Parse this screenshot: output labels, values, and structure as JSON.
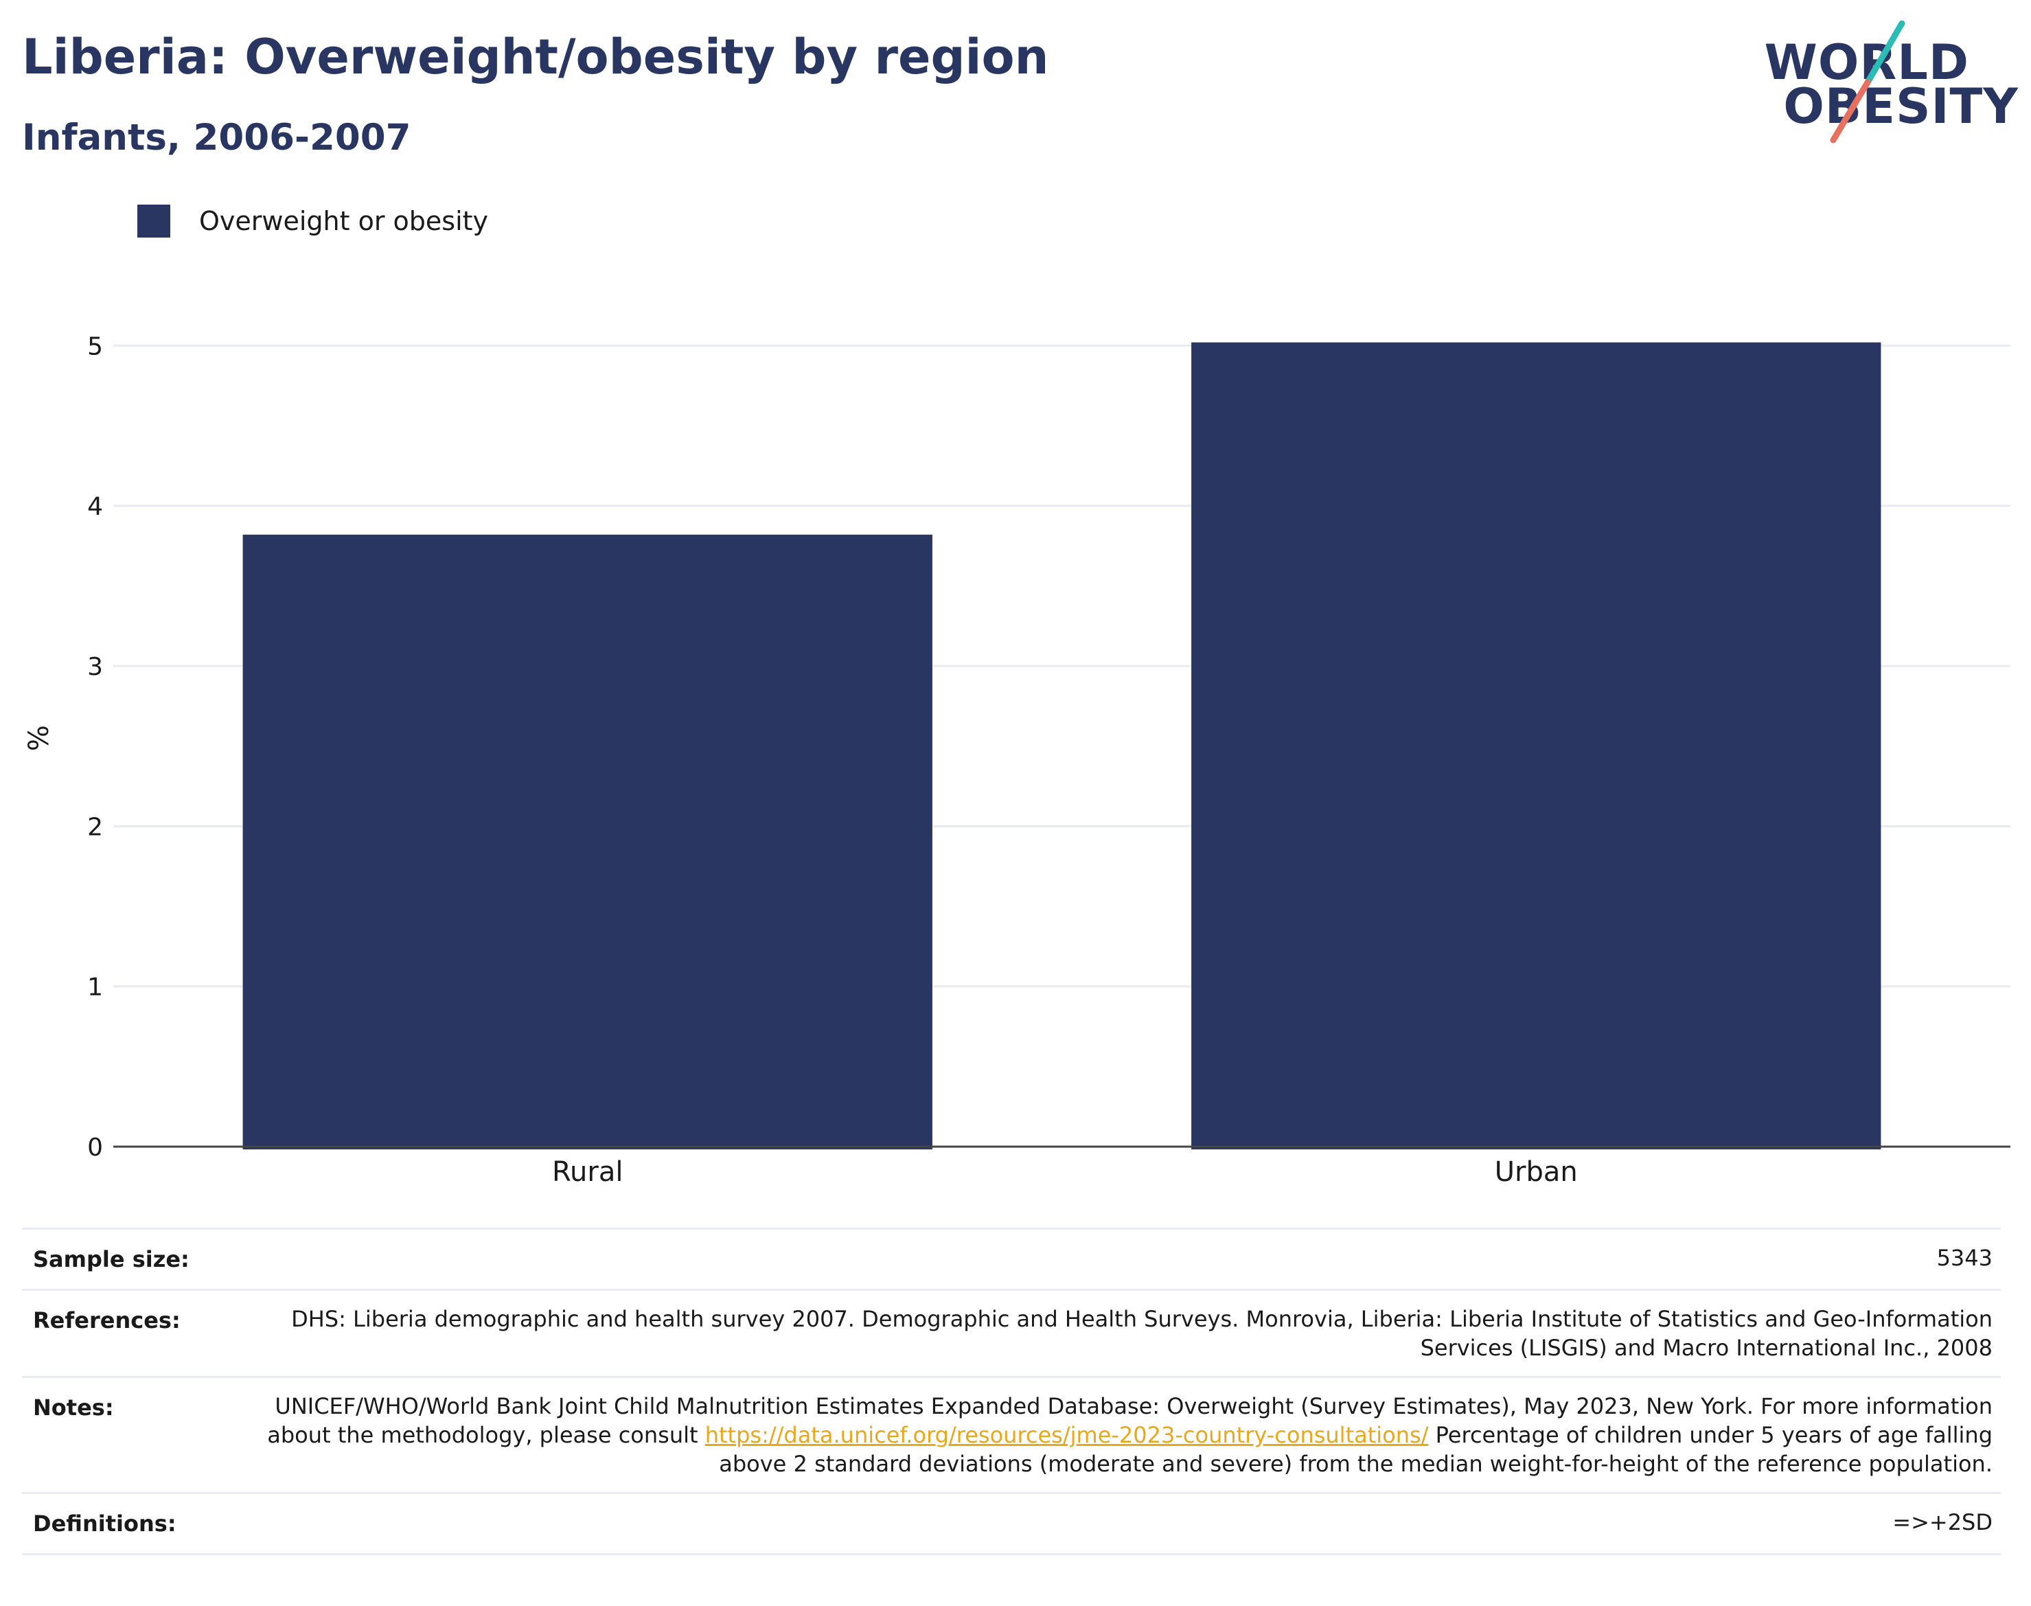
{
  "header": {
    "title": "Liberia: Overweight/obesity by region",
    "subtitle": "Infants, 2006-2007"
  },
  "logo": {
    "line1": "WORLD",
    "line2": "OBESITY",
    "colors": {
      "text": "#2a3662",
      "slash_top": "#2bbcb6",
      "slash_bottom": "#e8705f"
    }
  },
  "legend": {
    "label": "Overweight or obesity",
    "color": "#2a3662"
  },
  "chart_data": {
    "type": "bar",
    "categories": [
      "Rural",
      "Urban"
    ],
    "series": [
      {
        "name": "Overweight or obesity",
        "values": [
          3.82,
          5.02
        ],
        "color": "#2a3662"
      }
    ],
    "title": "Liberia: Overweight/obesity by region",
    "subtitle": "Infants, 2006-2007",
    "xlabel": "",
    "ylabel": "%",
    "ylim": [
      0,
      5
    ],
    "yticks": [
      0,
      1,
      2,
      3,
      4,
      5
    ],
    "grid": true,
    "legend_position": "top-left"
  },
  "info": {
    "sample_size": {
      "label": "Sample size:",
      "value": "5343"
    },
    "references": {
      "label": "References:",
      "value": "DHS: Liberia demographic and health survey 2007. Demographic and Health Surveys. Monrovia, Liberia: Liberia Institute of Statistics and Geo-Information Services (LISGIS) and Macro International Inc., 2008"
    },
    "notes": {
      "label": "Notes:",
      "text_before_link": "UNICEF/WHO/World Bank Joint Child Malnutrition Estimates Expanded Database: Overweight (Survey Estimates), May 2023, New York. For more information about the methodology, please consult ",
      "link": "https://data.unicef.org/resources/jme-2023-country-consultations/",
      "text_after_link": " Percentage of children under 5 years of age falling above 2 standard deviations (moderate and severe) from the median weight-for-height of the reference population."
    },
    "definitions": {
      "label": "Definitions:",
      "value": "=>+2SD"
    }
  }
}
